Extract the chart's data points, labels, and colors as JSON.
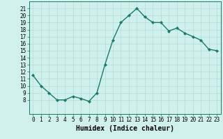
{
  "x": [
    0,
    1,
    2,
    3,
    4,
    5,
    6,
    7,
    8,
    9,
    10,
    11,
    12,
    13,
    14,
    15,
    16,
    17,
    18,
    19,
    20,
    21,
    22,
    23
  ],
  "y": [
    11.5,
    10,
    9,
    8,
    8,
    8.5,
    8.2,
    7.8,
    9,
    13,
    16.5,
    19,
    20,
    21,
    19.8,
    19,
    19,
    17.8,
    18.2,
    17.5,
    17,
    16.5,
    15.2,
    15
  ],
  "line_color": "#1a7a6a",
  "marker": "D",
  "marker_size": 2.0,
  "bg_color": "#cff0eb",
  "grid_color": "#b0ddd8",
  "xlabel": "Humidex (Indice chaleur)",
  "xlim": [
    -0.5,
    23.5
  ],
  "ylim": [
    6,
    22
  ],
  "yticks": [
    8,
    9,
    10,
    11,
    12,
    13,
    14,
    15,
    16,
    17,
    18,
    19,
    20,
    21
  ],
  "xticks": [
    0,
    1,
    2,
    3,
    4,
    5,
    6,
    7,
    8,
    9,
    10,
    11,
    12,
    13,
    14,
    15,
    16,
    17,
    18,
    19,
    20,
    21,
    22,
    23
  ],
  "tick_fontsize": 5.5,
  "xlabel_fontsize": 7.0,
  "line_width": 1.0
}
